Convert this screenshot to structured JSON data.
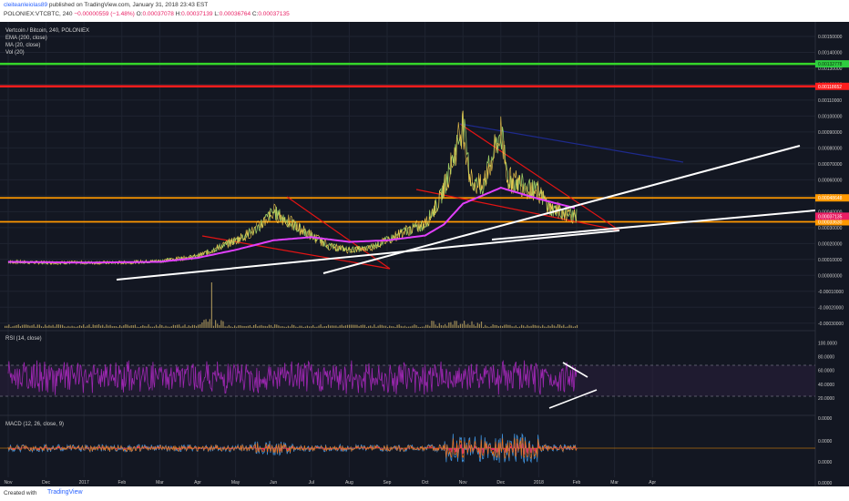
{
  "header": {
    "author": "cleiteanleiolas89",
    "published_text": " published on TradingView.com, January 31, 2018 23:43 EST",
    "symbol_line": "POLONIEX:VTCBTC, 240",
    "change": "−0.00000559 (−1.48%)",
    "o_label": "O:",
    "o_value": "0.00037078",
    "h_label": "H:",
    "h_value": "0.00037139",
    "l_label": "L:",
    "l_value": "0.00036764",
    "c_label": "C:",
    "c_value": "0.00037135"
  },
  "legend": {
    "title": "Vertcoin / Bitcoin, 240, POLONIEX",
    "ema": "EMA (200, close)",
    "ma": "MA (20, close)",
    "vol": "Vol (20)",
    "rsi": "RSI (14, close)",
    "macd": "MACD (12, 26, close, 9)"
  },
  "colors": {
    "bg": "#131722",
    "green_line": "#35d62a",
    "red_line": "#ff1d1d",
    "orange_line": "#ff9800",
    "white_line": "#ffffff",
    "trend_red": "#e31414",
    "trend_blue": "#1e2a8c",
    "ema": "#e040fb",
    "rsi": "#9c27b0",
    "macd": "#3d8fd8",
    "signal": "#ff6f00",
    "hist": "#ff2a6d"
  },
  "footer": {
    "created_with": "Created with",
    "brand": "TradingView"
  },
  "chart_data": [
    {
      "type": "line",
      "title": "Vertcoin / Bitcoin, 240, POLONIEX",
      "x_labels": [
        "Nov",
        "Dec",
        "2017",
        "Feb",
        "Mar",
        "Apr",
        "May",
        "Jun",
        "Jul",
        "Aug",
        "Sep",
        "Oct",
        "Nov",
        "Dec",
        "2018",
        "Feb",
        "Mar",
        "Apr"
      ],
      "y_labels": [
        "0.00150000",
        "0.00140000",
        "0.00130000",
        "0.00120000",
        "0.00110000",
        "0.00100000",
        "0.00090000",
        "0.00080000",
        "0.00070000",
        "0.00060000",
        "0.00050000",
        "0.00040000",
        "0.00030000",
        "0.00020000",
        "0.00010000",
        "0.00000000",
        "-0.00010000",
        "-0.00020000",
        "-0.00030000"
      ],
      "ylim": [
        -0.00033,
        0.00158
      ],
      "series": [
        {
          "name": "Price",
          "x": [
            0,
            1,
            2,
            3,
            4,
            5,
            6,
            6.5,
            7,
            7.5,
            8,
            8.5,
            9,
            9.5,
            10,
            10.5,
            11,
            11.4,
            11.7,
            12,
            12.2,
            12.5,
            13,
            13.2,
            13.5,
            14,
            14.3,
            14.6,
            15
          ],
          "y": [
            8.5e-05,
            8e-05,
            8e-05,
            8e-05,
            9e-05,
            0.00012,
            0.00022,
            0.00028,
            0.0004,
            0.00032,
            0.00025,
            0.00018,
            0.00016,
            0.00017,
            0.00022,
            0.00028,
            0.00032,
            0.00048,
            0.0007,
            0.00095,
            0.0006,
            0.00055,
            0.0009,
            0.0006,
            0.00058,
            0.00052,
            0.00042,
            0.0004,
            0.00037135
          ]
        },
        {
          "name": "EMA (200, close)",
          "x": [
            0,
            2,
            4,
            5,
            6,
            7,
            8,
            9,
            10,
            11,
            11.5,
            12,
            13,
            14,
            15
          ],
          "y": [
            8.5e-05,
            8e-05,
            8.5e-05,
            0.00011,
            0.00016,
            0.00022,
            0.00024,
            0.00021,
            0.00022,
            0.00025,
            0.00032,
            0.00045,
            0.00055,
            0.00048,
            0.00042
          ]
        }
      ],
      "horizontal_levels": [
        {
          "name": "green",
          "y": 0.00132778,
          "label": "0.00132778"
        },
        {
          "name": "red",
          "y": 0.00118652,
          "label": "0.00118652"
        },
        {
          "name": "orange_upper",
          "y": 0.00048648,
          "label": "0.00048648"
        },
        {
          "name": "orange_lower",
          "y": 0.0003363,
          "label": "0.00033630"
        }
      ],
      "price_tags": [
        {
          "y": 0.00037135,
          "label": "0.00037135"
        }
      ]
    },
    {
      "type": "line",
      "title": "RSI (14, close)",
      "y_labels": [
        "100.0000",
        "80.0000",
        "60.0000",
        "40.0000",
        "20.0000"
      ],
      "ylim": [
        0,
        110
      ],
      "bands": [
        70,
        30
      ]
    },
    {
      "type": "line",
      "title": "MACD (12, 26, close, 9)",
      "y_labels": [
        "0.0000",
        "0.0000",
        "0.0000",
        "0.0000"
      ]
    }
  ]
}
